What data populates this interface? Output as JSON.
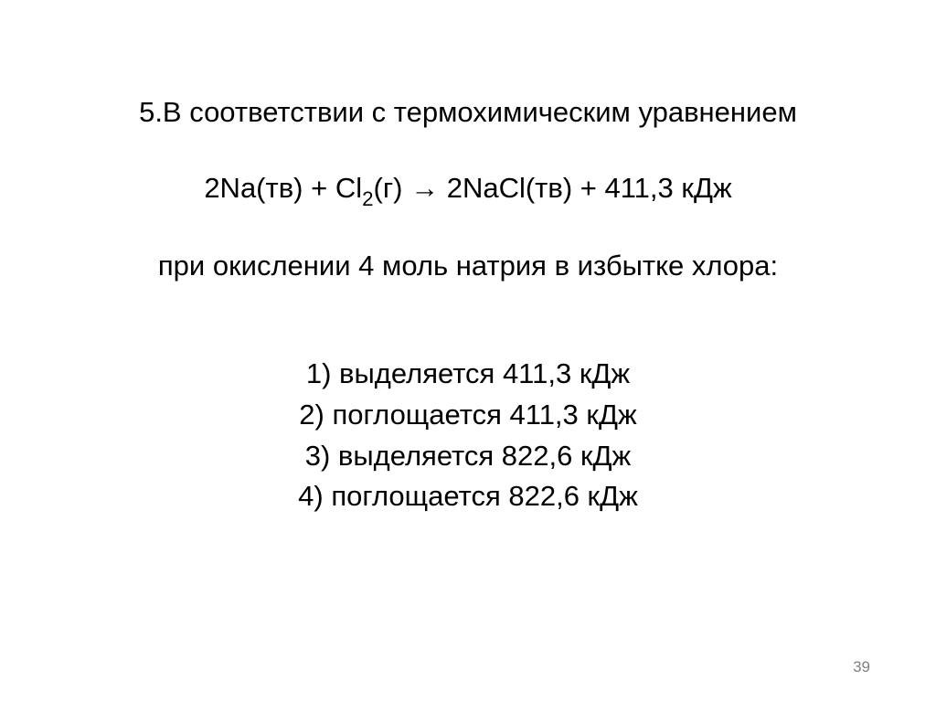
{
  "slide": {
    "question_intro": "5.В соответствии с термохимическим уравнением",
    "equation_parts": {
      "p1": "2Na(тв) + Cl",
      "sub1": "2",
      "p2": "(г) →  2NaCl(тв) + 411,3 кДж"
    },
    "condition": "при окислении 4 моль натрия в избытке хлора:",
    "answers": [
      "1) выделяется 411,3 кДж",
      "2) поглощается 411,3 кДж",
      "3) выделяется 822,6 кДж",
      "4) поглощается 822,6 кДж"
    ],
    "page_number": "39"
  },
  "styling": {
    "background_color": "#ffffff",
    "text_color": "#000000",
    "page_number_color": "#808080",
    "main_fontsize": 31,
    "page_number_fontsize": 17,
    "font_family": "Arial"
  }
}
